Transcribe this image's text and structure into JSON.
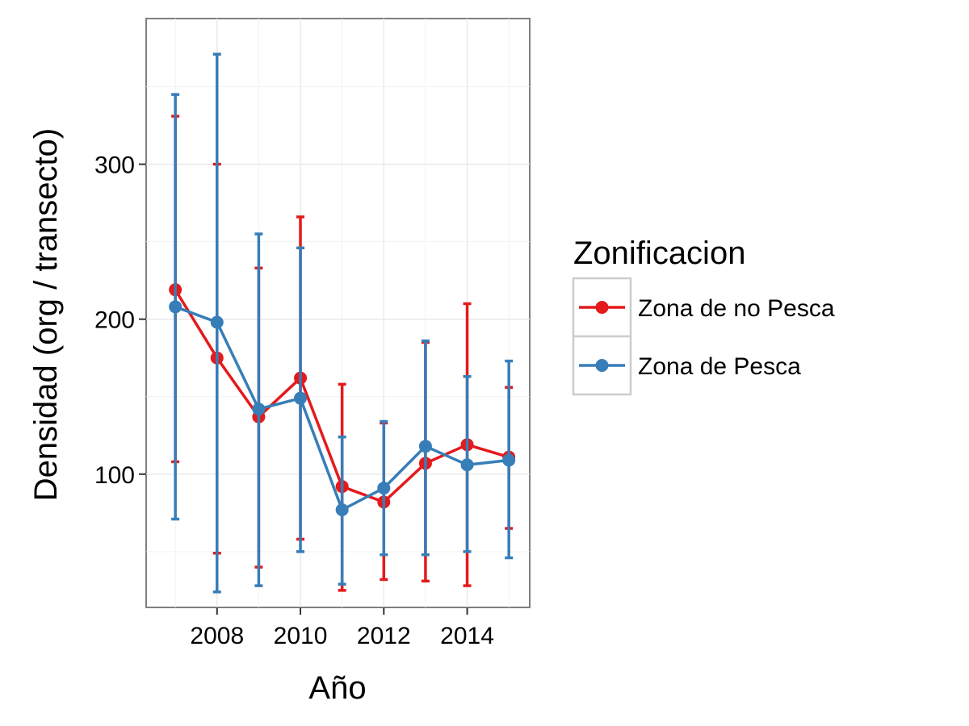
{
  "chart_data": {
    "type": "line",
    "title": "",
    "xlabel": "Año",
    "ylabel": "Densidad (org / transecto)",
    "x": [
      2007,
      2008,
      2009,
      2010,
      2011,
      2012,
      2013,
      2014,
      2015
    ],
    "x_ticks": [
      "2008",
      "2010",
      "2012",
      "2014"
    ],
    "y_ticks": [
      "100",
      "200",
      "300"
    ],
    "xlim": [
      2006.3,
      2015.5
    ],
    "ylim": [
      14,
      394
    ],
    "grid": true,
    "legend": {
      "title": "Zonificacion",
      "position": "right"
    },
    "series": [
      {
        "name": "Zona de no Pesca",
        "color": "#e41a1c",
        "values": [
          219,
          175,
          137,
          162,
          92,
          82,
          107,
          119,
          111
        ],
        "error_low": [
          108,
          49,
          40,
          58,
          25,
          32,
          31,
          28,
          65
        ],
        "error_high": [
          331,
          300,
          233,
          266,
          158,
          133,
          185,
          210,
          156
        ]
      },
      {
        "name": "Zona de Pesca",
        "color": "#377eb8",
        "values": [
          208,
          198,
          142,
          149,
          77,
          91,
          118,
          106,
          109
        ],
        "error_low": [
          71,
          24,
          28,
          50,
          29,
          48,
          48,
          50,
          46
        ],
        "error_high": [
          345,
          371,
          255,
          246,
          124,
          134,
          186,
          163,
          173
        ]
      }
    ]
  }
}
